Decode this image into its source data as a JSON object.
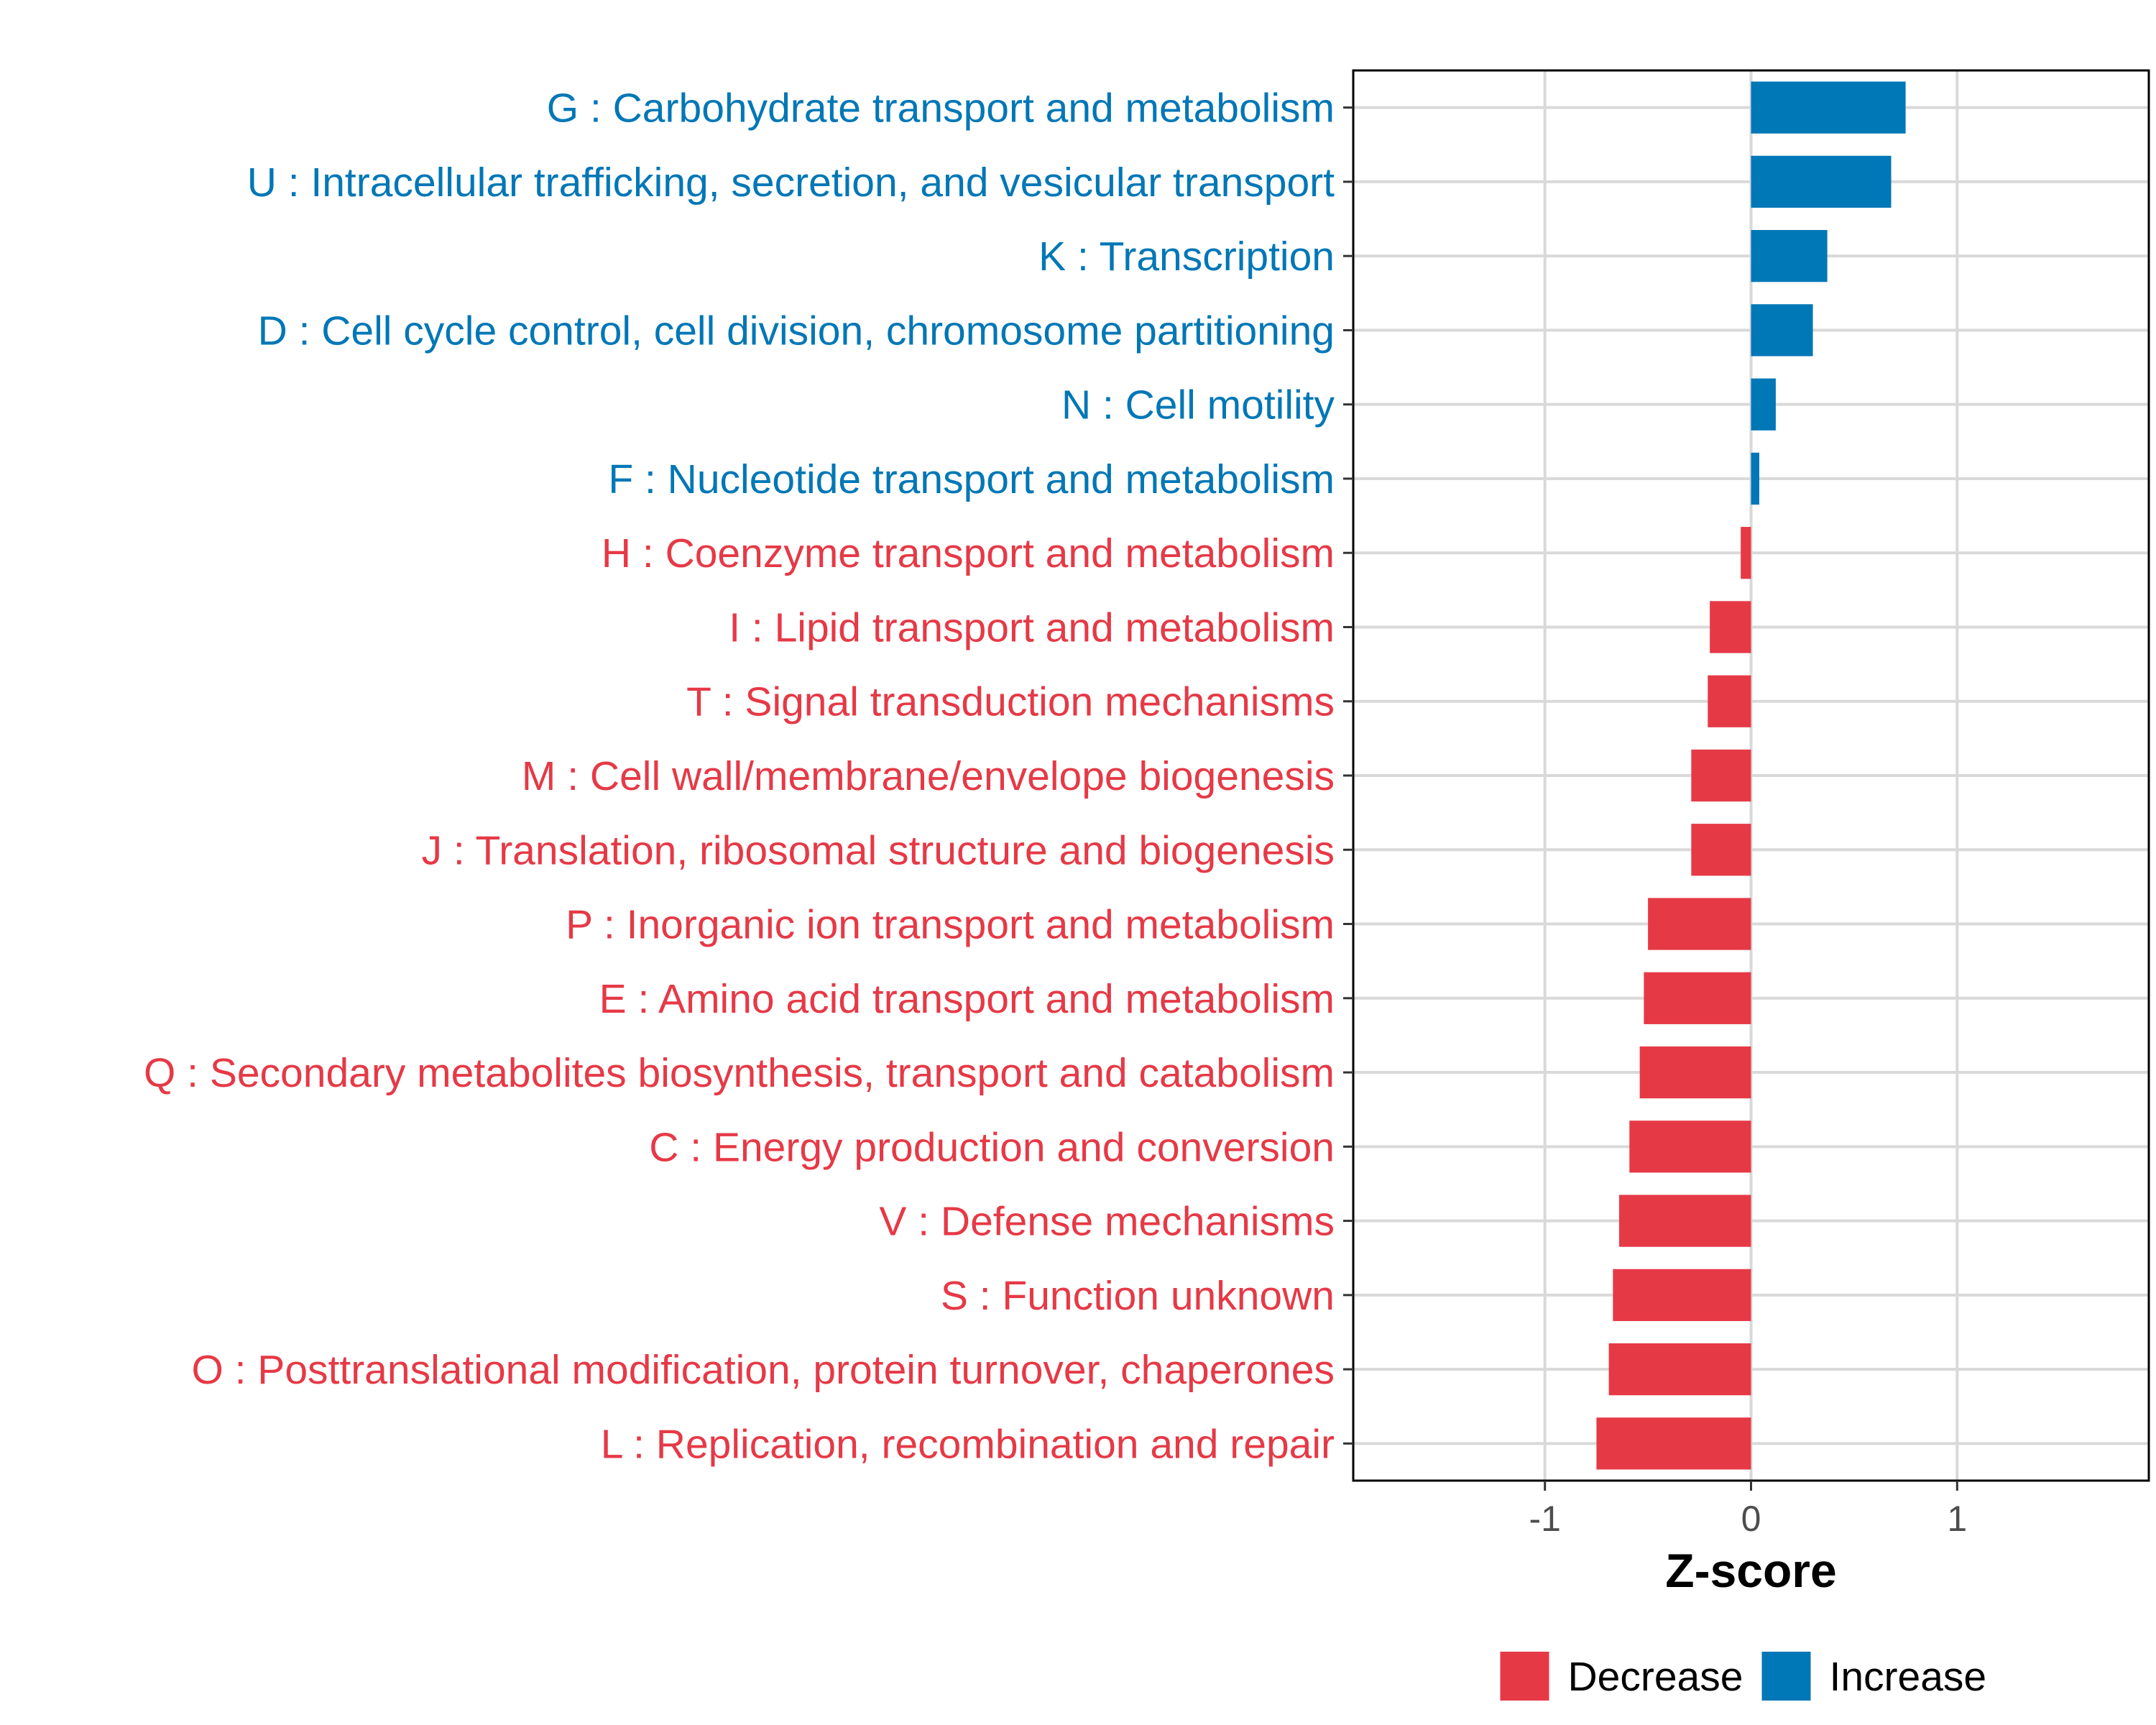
{
  "chart_data": {
    "type": "bar",
    "orientation": "horizontal",
    "title": "",
    "xlabel": "Z-score",
    "ylabel": "",
    "xlim": [
      -1.93,
      1.93
    ],
    "xticks": [
      {
        "value": -1,
        "label": "-1"
      },
      {
        "value": 0,
        "label": "0"
      },
      {
        "value": 1,
        "label": "1"
      }
    ],
    "grid": true,
    "legend": {
      "position": "bottom",
      "entries": [
        {
          "name": "Decrease",
          "color": "#e63946"
        },
        {
          "name": "Increase",
          "color": "#0077b6"
        }
      ]
    },
    "categories": [
      {
        "label": "G : Carbohydrate transport and metabolism",
        "value": 0.75,
        "group": "Increase"
      },
      {
        "label": "U : Intracellular trafficking, secretion, and vesicular transport",
        "value": 0.68,
        "group": "Increase"
      },
      {
        "label": "K : Transcription",
        "value": 0.37,
        "group": "Increase"
      },
      {
        "label": "D : Cell cycle control, cell division, chromosome partitioning",
        "value": 0.3,
        "group": "Increase"
      },
      {
        "label": "N : Cell motility",
        "value": 0.12,
        "group": "Increase"
      },
      {
        "label": "F : Nucleotide transport and metabolism",
        "value": 0.04,
        "group": "Increase"
      },
      {
        "label": "H : Coenzyme transport and metabolism",
        "value": -0.05,
        "group": "Decrease"
      },
      {
        "label": "I : Lipid transport and metabolism",
        "value": -0.2,
        "group": "Decrease"
      },
      {
        "label": "T : Signal transduction mechanisms",
        "value": -0.21,
        "group": "Decrease"
      },
      {
        "label": "M : Cell wall/membrane/envelope biogenesis",
        "value": -0.29,
        "group": "Decrease"
      },
      {
        "label": "J : Translation, ribosomal structure and biogenesis",
        "value": -0.29,
        "group": "Decrease"
      },
      {
        "label": "P : Inorganic ion transport and metabolism",
        "value": -0.5,
        "group": "Decrease"
      },
      {
        "label": "E : Amino acid transport and metabolism",
        "value": -0.52,
        "group": "Decrease"
      },
      {
        "label": "Q : Secondary metabolites biosynthesis, transport and catabolism",
        "value": -0.54,
        "group": "Decrease"
      },
      {
        "label": "C : Energy production and conversion",
        "value": -0.59,
        "group": "Decrease"
      },
      {
        "label": "V : Defense mechanisms",
        "value": -0.64,
        "group": "Decrease"
      },
      {
        "label": "S : Function unknown",
        "value": -0.67,
        "group": "Decrease"
      },
      {
        "label": "O : Posttranslational modification, protein turnover, chaperones",
        "value": -0.69,
        "group": "Decrease"
      },
      {
        "label": "L : Replication, recombination and repair",
        "value": -0.75,
        "group": "Decrease"
      }
    ]
  }
}
